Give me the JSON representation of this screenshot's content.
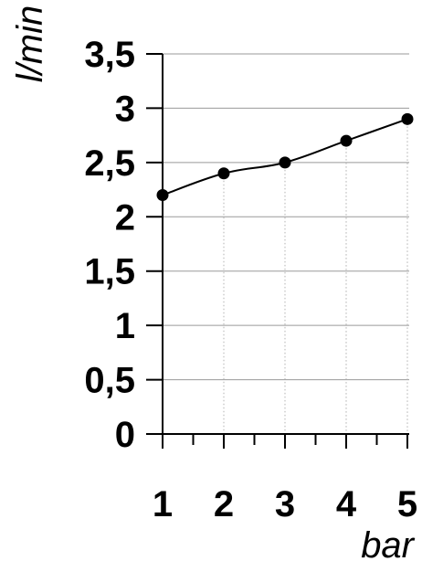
{
  "chart_data": {
    "type": "line",
    "title": "",
    "xlabel": "bar",
    "ylabel": "l/min",
    "x": [
      1,
      2,
      3,
      4,
      5
    ],
    "series": [
      {
        "values": [
          2.2,
          2.4,
          2.5,
          2.7,
          2.9
        ]
      }
    ],
    "xlim": [
      1,
      5
    ],
    "ylim": [
      0,
      3.5
    ],
    "x_ticks": [
      "1",
      "2",
      "3",
      "4",
      "5"
    ],
    "y_ticks": [
      "0",
      "0,5",
      "1",
      "1,5",
      "2",
      "2,5",
      "3",
      "3,5"
    ],
    "grid": true,
    "legend": "none",
    "colors": {
      "line": "#000000",
      "marker": "#000000",
      "hgrid": "#9a9a9a",
      "vgrid": "#b0b0b0",
      "axis": "#000000"
    }
  }
}
